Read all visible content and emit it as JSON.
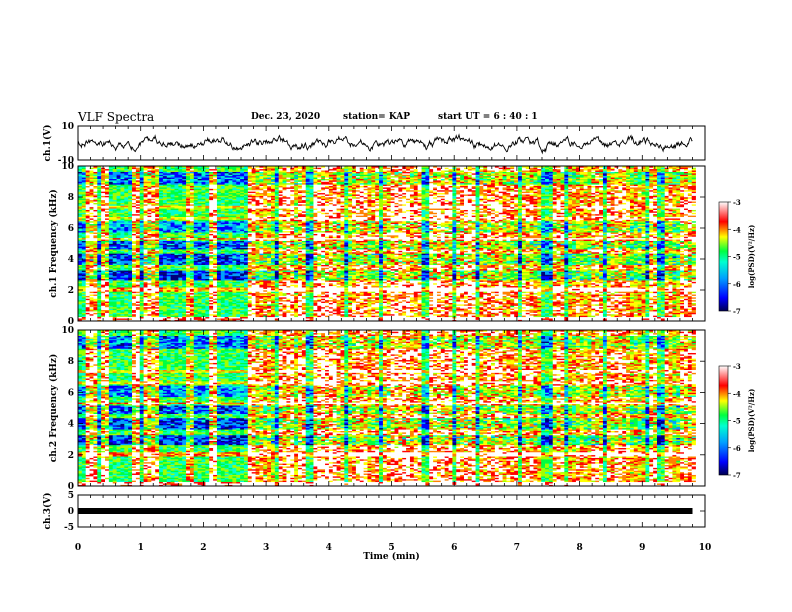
{
  "header": {
    "title": "VLF Spectra",
    "date": "Dec. 23, 2020",
    "station": "station= KAP",
    "start": "start  UT  =   6  : 40 : 1"
  },
  "chart_data": [
    {
      "type": "line",
      "panel": "ch1-waveform",
      "ylabel": "ch.1(V)",
      "ylim": [
        -10,
        10
      ],
      "yticks": [
        "10",
        "-10"
      ],
      "x_range_min": [
        0,
        9.8
      ],
      "description": "noisy waveform roughly between -5 and +5 V"
    },
    {
      "type": "heatmap",
      "panel": "ch1-spectrogram",
      "ylabel": "ch.1  Frequency  (kHz)",
      "ylim": [
        0,
        10
      ],
      "yticks": [
        "0",
        "2",
        "4",
        "6",
        "8",
        "10"
      ],
      "xlim": [
        0,
        10
      ],
      "colorbar": {
        "label": "log(PSD)(V²/Hz)",
        "range": [
          -7,
          -3
        ],
        "ticks": [
          "-3",
          "-4",
          "-5",
          "-6",
          "-7"
        ]
      }
    },
    {
      "type": "heatmap",
      "panel": "ch2-spectrogram",
      "ylabel": "ch.2  Frequency  (kHz)",
      "ylim": [
        0,
        10
      ],
      "yticks": [
        "0",
        "2",
        "4",
        "6",
        "8",
        "10"
      ],
      "xlim": [
        0,
        10
      ],
      "colorbar": {
        "label": "log(PSD)(V²/Hz)",
        "range": [
          -7,
          -3
        ],
        "ticks": [
          "-3",
          "-4",
          "-5",
          "-6",
          "-7"
        ]
      }
    },
    {
      "type": "line",
      "panel": "ch3-waveform",
      "ylabel": "ch.3(V)",
      "ylim": [
        -5,
        5
      ],
      "yticks": [
        "5",
        "0",
        "-5"
      ],
      "constant_value": 0
    }
  ],
  "xaxis": {
    "label": "Time  (min)",
    "ticks": [
      "0",
      "1",
      "2",
      "3",
      "4",
      "5",
      "6",
      "7",
      "8",
      "9",
      "10"
    ]
  },
  "colors": {
    "colormap": [
      "#00007a",
      "#0000ff",
      "#00a0ff",
      "#00ffd0",
      "#00ff40",
      "#a0ff00",
      "#ffff00",
      "#ff8000",
      "#ff0000",
      "#ffffff"
    ]
  }
}
